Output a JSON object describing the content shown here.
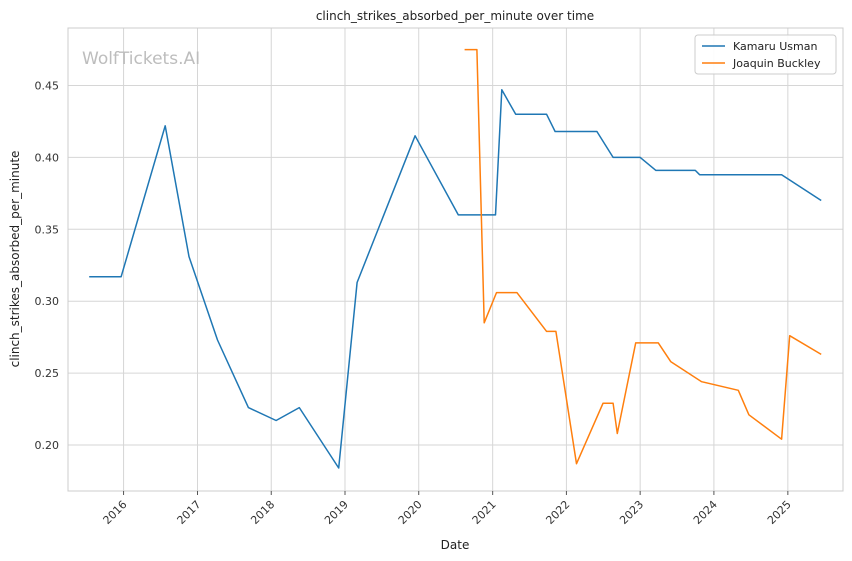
{
  "chart_data": {
    "type": "line",
    "title": "clinch_strikes_absorbed_per_minute over time",
    "xlabel": "Date",
    "ylabel": "clinch_strikes_absorbed_per_minute",
    "watermark": "WolfTickets.AI",
    "x_type": "date",
    "xlim": [
      "2015-04-01",
      "2025-10-01"
    ],
    "ylim": [
      0.168,
      0.49
    ],
    "x_ticks": [
      "2016-01-01",
      "2017-01-01",
      "2018-01-01",
      "2019-01-01",
      "2020-01-01",
      "2021-01-01",
      "2022-01-01",
      "2023-01-01",
      "2024-01-01",
      "2025-01-01"
    ],
    "x_tick_labels": [
      "2016",
      "2017",
      "2018",
      "2019",
      "2020",
      "2021",
      "2022",
      "2023",
      "2024",
      "2025"
    ],
    "y_ticks": [
      0.2,
      0.25,
      0.3,
      0.35,
      0.4,
      0.45
    ],
    "y_tick_labels": [
      "0.20",
      "0.25",
      "0.30",
      "0.35",
      "0.40",
      "0.45"
    ],
    "grid": true,
    "legend_position": "top-right",
    "series": [
      {
        "name": "Kamaru Usman",
        "color": "#1f77b4",
        "points": [
          [
            "2015-07-15",
            0.317
          ],
          [
            "2015-12-20",
            0.317
          ],
          [
            "2016-07-25",
            0.422
          ],
          [
            "2016-11-20",
            0.331
          ],
          [
            "2017-04-10",
            0.273
          ],
          [
            "2017-09-10",
            0.226
          ],
          [
            "2018-01-25",
            0.217
          ],
          [
            "2018-05-20",
            0.226
          ],
          [
            "2018-12-01",
            0.184
          ],
          [
            "2019-03-02",
            0.313
          ],
          [
            "2019-12-14",
            0.415
          ],
          [
            "2020-07-15",
            0.36
          ],
          [
            "2021-01-15",
            0.36
          ],
          [
            "2021-02-15",
            0.447
          ],
          [
            "2021-04-25",
            0.43
          ],
          [
            "2021-09-25",
            0.43
          ],
          [
            "2021-11-06",
            0.418
          ],
          [
            "2022-06-01",
            0.418
          ],
          [
            "2022-08-20",
            0.4
          ],
          [
            "2023-01-01",
            0.4
          ],
          [
            "2023-03-20",
            0.391
          ],
          [
            "2023-10-01",
            0.391
          ],
          [
            "2023-10-22",
            0.388
          ],
          [
            "2024-12-01",
            0.388
          ],
          [
            "2025-06-15",
            0.37
          ]
        ]
      },
      {
        "name": "Joaquin Buckley",
        "color": "#ff7f0e",
        "points": [
          [
            "2020-08-15",
            0.475
          ],
          [
            "2020-10-15",
            0.475
          ],
          [
            "2020-11-20",
            0.285
          ],
          [
            "2021-01-20",
            0.306
          ],
          [
            "2021-05-01",
            0.306
          ],
          [
            "2021-09-25",
            0.279
          ],
          [
            "2021-11-10",
            0.279
          ],
          [
            "2022-02-20",
            0.187
          ],
          [
            "2022-07-01",
            0.229
          ],
          [
            "2022-08-20",
            0.229
          ],
          [
            "2022-09-10",
            0.208
          ],
          [
            "2022-12-10",
            0.271
          ],
          [
            "2023-04-01",
            0.271
          ],
          [
            "2023-06-01",
            0.258
          ],
          [
            "2023-11-01",
            0.244
          ],
          [
            "2024-05-01",
            0.238
          ],
          [
            "2024-06-22",
            0.221
          ],
          [
            "2024-12-01",
            0.204
          ],
          [
            "2025-01-10",
            0.276
          ],
          [
            "2025-06-15",
            0.263
          ]
        ]
      }
    ]
  }
}
